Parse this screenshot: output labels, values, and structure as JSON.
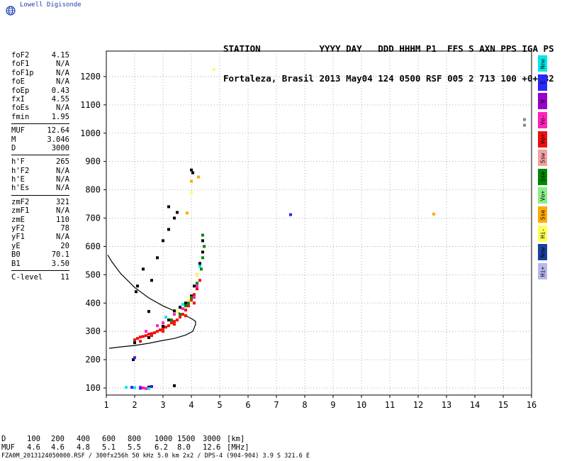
{
  "brand": {
    "text": "Lowell Digisonde",
    "logo_icon": "globe-icon"
  },
  "header": {
    "line1": "STATION           YYYY DAY   DDD HHHM P1  FFS S AXN PPS IGA PS",
    "line2": "Fortaleza, Brasil 2013 May04 124 0500 RSF 005 2 713 100 +0+ B2"
  },
  "params": {
    "group1": [
      {
        "name": "foF2",
        "value": "4.15"
      },
      {
        "name": "foF1",
        "value": "N/A"
      },
      {
        "name": "foF1p",
        "value": "N/A"
      },
      {
        "name": "foE",
        "value": "N/A"
      },
      {
        "name": "foEp",
        "value": "0.43"
      },
      {
        "name": "fxI",
        "value": "4.55"
      },
      {
        "name": "foEs",
        "value": "N/A"
      },
      {
        "name": "fmin",
        "value": "1.95"
      }
    ],
    "group2": [
      {
        "name": "MUF",
        "value": "12.64"
      },
      {
        "name": "M",
        "value": "3.046"
      },
      {
        "name": "D",
        "value": "3000"
      }
    ],
    "group3": [
      {
        "name": "h'F",
        "value": "265"
      },
      {
        "name": "h'F2",
        "value": "N/A"
      },
      {
        "name": "h'E",
        "value": "N/A"
      },
      {
        "name": "h'Es",
        "value": "N/A"
      }
    ],
    "group4": [
      {
        "name": "zmF2",
        "value": "321"
      },
      {
        "name": "zmF1",
        "value": "N/A"
      },
      {
        "name": "zmE",
        "value": "110"
      },
      {
        "name": "yF2",
        "value": "78"
      },
      {
        "name": "yF1",
        "value": "N/A"
      },
      {
        "name": "yE",
        "value": "20"
      },
      {
        "name": "B0",
        "value": "70.1"
      },
      {
        "name": "B1",
        "value": "3.50"
      }
    ],
    "group5": [
      {
        "name": "C-level",
        "value": "11"
      }
    ]
  },
  "legend": [
    {
      "label": "Nne",
      "color": "#00e8e8"
    },
    {
      "label": "E",
      "color": "#2828ff"
    },
    {
      "label": "W",
      "color": "#9900cc"
    },
    {
      "label": "Vo-",
      "color": "#ff22bb"
    },
    {
      "label": "Vo+",
      "color": "#ee1111"
    },
    {
      "label": "Ssw",
      "color": "#f4a0a0"
    },
    {
      "label": "Sse",
      "color": "#008800"
    },
    {
      "label": "Vo+",
      "color": "#88ee88"
    },
    {
      "label": "Sse",
      "color": "#ffaa00"
    },
    {
      "label": "Hi-",
      "color": "#ffff55"
    },
    {
      "label": "Nnw",
      "color": "#1c40a0"
    },
    {
      "label": "Hi+",
      "color": "#b8b8ee"
    }
  ],
  "chart_data": {
    "type": "scatter",
    "xlabel": "",
    "ylabel": "",
    "xlim": [
      1,
      16
    ],
    "ylim": [
      75,
      1290
    ],
    "x_ticks": [
      1,
      2,
      3,
      4,
      5,
      6,
      7,
      8,
      9,
      10,
      11,
      12,
      13,
      14,
      15,
      16
    ],
    "y_ticks": [
      100,
      200,
      300,
      400,
      500,
      600,
      700,
      800,
      900,
      1000,
      1100,
      1200
    ],
    "grid": true,
    "series": [
      {
        "color": "#ee1111",
        "points": [
          [
            2.0,
            270
          ],
          [
            2.1,
            275
          ],
          [
            2.2,
            280
          ],
          [
            2.3,
            282
          ],
          [
            2.4,
            285
          ],
          [
            2.5,
            290
          ],
          [
            2.6,
            292
          ],
          [
            2.7,
            295
          ],
          [
            2.8,
            300
          ],
          [
            2.9,
            305
          ],
          [
            3.0,
            310
          ],
          [
            3.1,
            315
          ],
          [
            3.2,
            320
          ],
          [
            3.3,
            330
          ],
          [
            3.4,
            335
          ],
          [
            3.5,
            340
          ],
          [
            3.6,
            350
          ],
          [
            3.7,
            360
          ],
          [
            3.8,
            375
          ],
          [
            3.9,
            390
          ],
          [
            4.0,
            410
          ],
          [
            4.1,
            430
          ],
          [
            2.2,
            265
          ],
          [
            2.6,
            285
          ],
          [
            3.0,
            300
          ],
          [
            3.4,
            325
          ],
          [
            3.8,
            355
          ],
          [
            4.1,
            400
          ],
          [
            4.2,
            450
          ],
          [
            4.3,
            480
          ]
        ]
      },
      {
        "color": "#000000",
        "points": [
          [
            2.0,
            260
          ],
          [
            2.5,
            278
          ],
          [
            3.0,
            318
          ],
          [
            3.2,
            340
          ],
          [
            3.4,
            372
          ],
          [
            3.6,
            385
          ],
          [
            3.8,
            400
          ],
          [
            4.0,
            425
          ],
          [
            4.1,
            460
          ],
          [
            4.2,
            500
          ],
          [
            4.3,
            540
          ],
          [
            4.4,
            580
          ],
          [
            4.4,
            620
          ],
          [
            2.6,
            480
          ],
          [
            2.8,
            560
          ],
          [
            3.0,
            620
          ],
          [
            3.2,
            660
          ],
          [
            3.4,
            700
          ],
          [
            3.5,
            720
          ],
          [
            2.5,
            370
          ],
          [
            2.1,
            460
          ],
          [
            2.3,
            520
          ],
          [
            3.2,
            740
          ],
          [
            4.0,
            870
          ],
          [
            4.05,
            860
          ],
          [
            2.05,
            440
          ],
          [
            3.4,
            108
          ],
          [
            1.95,
            200
          ],
          [
            2.5,
            103
          ]
        ]
      },
      {
        "color": "#008800",
        "points": [
          [
            3.6,
            360
          ],
          [
            3.8,
            390
          ],
          [
            4.0,
            420
          ],
          [
            4.2,
            470
          ],
          [
            4.35,
            520
          ],
          [
            4.4,
            560
          ],
          [
            4.45,
            600
          ],
          [
            4.4,
            640
          ],
          [
            3.9,
            400
          ],
          [
            3.3,
            340
          ]
        ]
      },
      {
        "color": "#ff22bb",
        "points": [
          [
            2.4,
            300
          ],
          [
            2.8,
            320
          ],
          [
            3.0,
            330
          ],
          [
            3.4,
            360
          ],
          [
            3.7,
            380
          ],
          [
            4.1,
            420
          ],
          [
            4.2,
            460
          ],
          [
            2.3,
            100
          ],
          [
            2.4,
            98
          ],
          [
            2.2,
            103
          ]
        ]
      },
      {
        "color": "#ffff55",
        "points": [
          [
            3.5,
            370
          ],
          [
            3.9,
            410
          ],
          [
            4.2,
            500
          ],
          [
            4.0,
            790
          ],
          [
            4.8,
            1225
          ]
        ]
      },
      {
        "color": "#2828ff",
        "points": [
          [
            7.5,
            712
          ],
          [
            1.9,
            102
          ],
          [
            2.0,
            207
          ],
          [
            2.2,
            99
          ],
          [
            2.6,
            105
          ]
        ]
      },
      {
        "color": "#00e8e8",
        "points": [
          [
            3.1,
            350
          ],
          [
            3.7,
            395
          ],
          [
            4.3,
            530
          ],
          [
            2.5,
            98
          ],
          [
            2.0,
            101
          ],
          [
            1.7,
            102
          ]
        ]
      },
      {
        "color": "#ffaa00",
        "points": [
          [
            4.25,
            845
          ],
          [
            4.0,
            830
          ],
          [
            3.85,
            718
          ],
          [
            12.55,
            714
          ]
        ]
      },
      {
        "color": "#888888",
        "points": [
          [
            15.75,
            1048
          ],
          [
            15.75,
            1028
          ]
        ]
      }
    ],
    "profile_curve": [
      [
        1.05,
        570
      ],
      [
        1.2,
        545
      ],
      [
        1.5,
        505
      ],
      [
        2.0,
        455
      ],
      [
        2.5,
        418
      ],
      [
        3.0,
        390
      ],
      [
        3.5,
        368
      ],
      [
        3.85,
        353
      ],
      [
        4.05,
        342
      ],
      [
        4.15,
        335
      ],
      [
        4.15,
        325
      ],
      [
        4.05,
        300
      ],
      [
        3.8,
        287
      ],
      [
        3.4,
        275
      ],
      [
        3.0,
        268
      ],
      [
        2.5,
        258
      ],
      [
        2.0,
        250
      ],
      [
        1.5,
        245
      ],
      [
        1.1,
        240
      ]
    ]
  },
  "muf_table": {
    "d_label": "D",
    "muf_label": "MUF",
    "d_values": [
      "100",
      "200",
      "400",
      "600",
      "800",
      "1000",
      "1500",
      "3000"
    ],
    "muf_values": [
      "4.6",
      "4.6",
      "4.8",
      "5.1",
      "5.5",
      "6.2",
      "8.0",
      "12.6"
    ],
    "d_unit": "[km]",
    "muf_unit": "[MHz]"
  },
  "footer": "FZA0M_2013124050000.RSF / 300fx256h 50 kHz 5.0 km 2x2 / DPS-4 (904-904)  3.9 S 321.6 E"
}
